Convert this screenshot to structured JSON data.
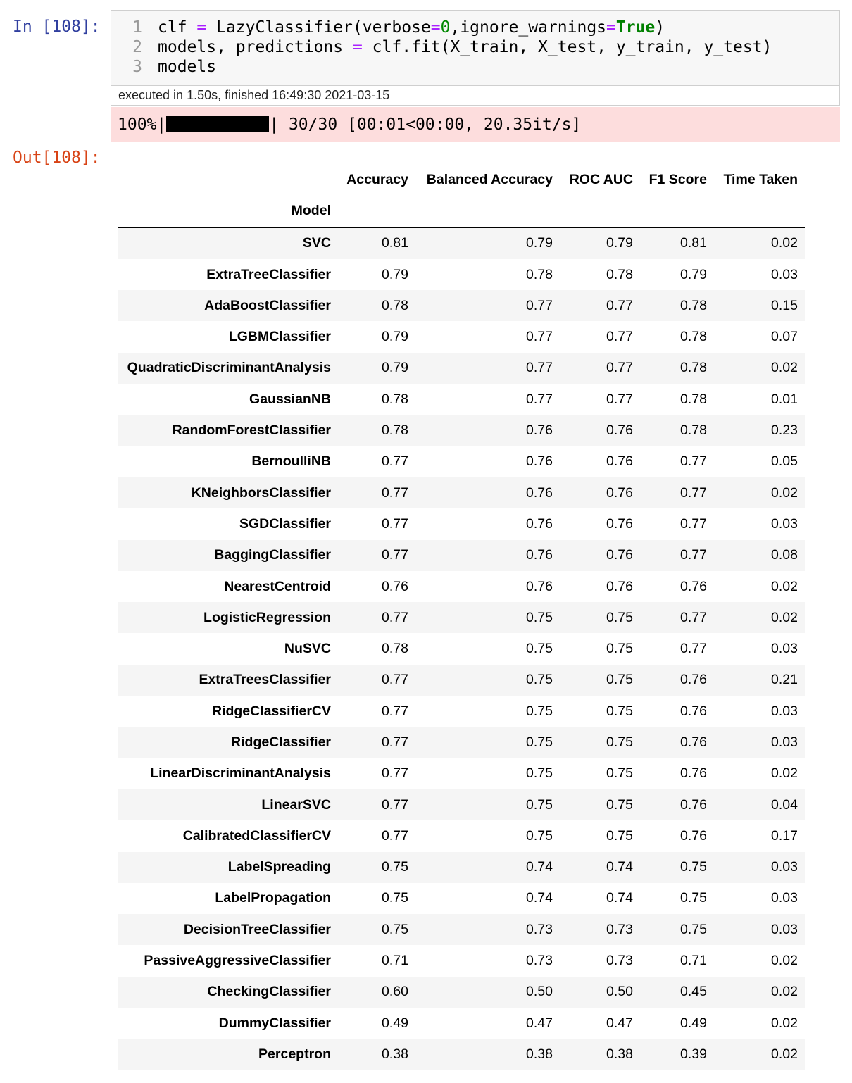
{
  "input": {
    "prompt": "In [108]:",
    "code": [
      {
        "number": "1",
        "tokens": [
          {
            "text": "clf "
          },
          {
            "text": "=",
            "color": "#aa22ff"
          },
          {
            "text": " LazyClassifier(verbose"
          },
          {
            "text": "=",
            "color": "#aa22ff"
          },
          {
            "text": "0",
            "color": "#008800"
          },
          {
            "text": ",ignore_warnings"
          },
          {
            "text": "=",
            "color": "#aa22ff"
          },
          {
            "text": "True",
            "color": "#008000",
            "bold": true
          },
          {
            "text": ")"
          }
        ]
      },
      {
        "number": "2",
        "tokens": [
          {
            "text": "models, predictions "
          },
          {
            "text": "=",
            "color": "#aa22ff"
          },
          {
            "text": " clf.fit(X_train, X_test, y_train, y_test)"
          }
        ]
      },
      {
        "number": "3",
        "tokens": [
          {
            "text": "models"
          }
        ]
      }
    ],
    "execution_info": "executed in 1.50s, finished 16:49:30 2021-03-15"
  },
  "stderr": {
    "left": "100%|",
    "right": "| 30/30 [00:01<00:00, 20.35it/s]"
  },
  "output": {
    "prompt": "Out[108]:",
    "table": {
      "index_name": "Model",
      "columns": [
        "Accuracy",
        "Balanced Accuracy",
        "ROC AUC",
        "F1 Score",
        "Time Taken"
      ],
      "rows": [
        [
          "SVC",
          "0.81",
          "0.79",
          "0.79",
          "0.81",
          "0.02"
        ],
        [
          "ExtraTreeClassifier",
          "0.79",
          "0.78",
          "0.78",
          "0.79",
          "0.03"
        ],
        [
          "AdaBoostClassifier",
          "0.78",
          "0.77",
          "0.77",
          "0.78",
          "0.15"
        ],
        [
          "LGBMClassifier",
          "0.79",
          "0.77",
          "0.77",
          "0.78",
          "0.07"
        ],
        [
          "QuadraticDiscriminantAnalysis",
          "0.79",
          "0.77",
          "0.77",
          "0.78",
          "0.02"
        ],
        [
          "GaussianNB",
          "0.78",
          "0.77",
          "0.77",
          "0.78",
          "0.01"
        ],
        [
          "RandomForestClassifier",
          "0.78",
          "0.76",
          "0.76",
          "0.78",
          "0.23"
        ],
        [
          "BernoulliNB",
          "0.77",
          "0.76",
          "0.76",
          "0.77",
          "0.05"
        ],
        [
          "KNeighborsClassifier",
          "0.77",
          "0.76",
          "0.76",
          "0.77",
          "0.02"
        ],
        [
          "SGDClassifier",
          "0.77",
          "0.76",
          "0.76",
          "0.77",
          "0.03"
        ],
        [
          "BaggingClassifier",
          "0.77",
          "0.76",
          "0.76",
          "0.77",
          "0.08"
        ],
        [
          "NearestCentroid",
          "0.76",
          "0.76",
          "0.76",
          "0.76",
          "0.02"
        ],
        [
          "LogisticRegression",
          "0.77",
          "0.75",
          "0.75",
          "0.77",
          "0.02"
        ],
        [
          "NuSVC",
          "0.78",
          "0.75",
          "0.75",
          "0.77",
          "0.03"
        ],
        [
          "ExtraTreesClassifier",
          "0.77",
          "0.75",
          "0.75",
          "0.76",
          "0.21"
        ],
        [
          "RidgeClassifierCV",
          "0.77",
          "0.75",
          "0.75",
          "0.76",
          "0.03"
        ],
        [
          "RidgeClassifier",
          "0.77",
          "0.75",
          "0.75",
          "0.76",
          "0.03"
        ],
        [
          "LinearDiscriminantAnalysis",
          "0.77",
          "0.75",
          "0.75",
          "0.76",
          "0.02"
        ],
        [
          "LinearSVC",
          "0.77",
          "0.75",
          "0.75",
          "0.76",
          "0.04"
        ],
        [
          "CalibratedClassifierCV",
          "0.77",
          "0.75",
          "0.75",
          "0.76",
          "0.17"
        ],
        [
          "LabelSpreading",
          "0.75",
          "0.74",
          "0.74",
          "0.75",
          "0.03"
        ],
        [
          "LabelPropagation",
          "0.75",
          "0.74",
          "0.74",
          "0.75",
          "0.03"
        ],
        [
          "DecisionTreeClassifier",
          "0.75",
          "0.73",
          "0.73",
          "0.75",
          "0.03"
        ],
        [
          "PassiveAggressiveClassifier",
          "0.71",
          "0.73",
          "0.73",
          "0.71",
          "0.02"
        ],
        [
          "CheckingClassifier",
          "0.60",
          "0.50",
          "0.50",
          "0.45",
          "0.02"
        ],
        [
          "DummyClassifier",
          "0.49",
          "0.47",
          "0.47",
          "0.49",
          "0.02"
        ],
        [
          "Perceptron",
          "0.38",
          "0.38",
          "0.38",
          "0.39",
          "0.02"
        ]
      ]
    }
  }
}
